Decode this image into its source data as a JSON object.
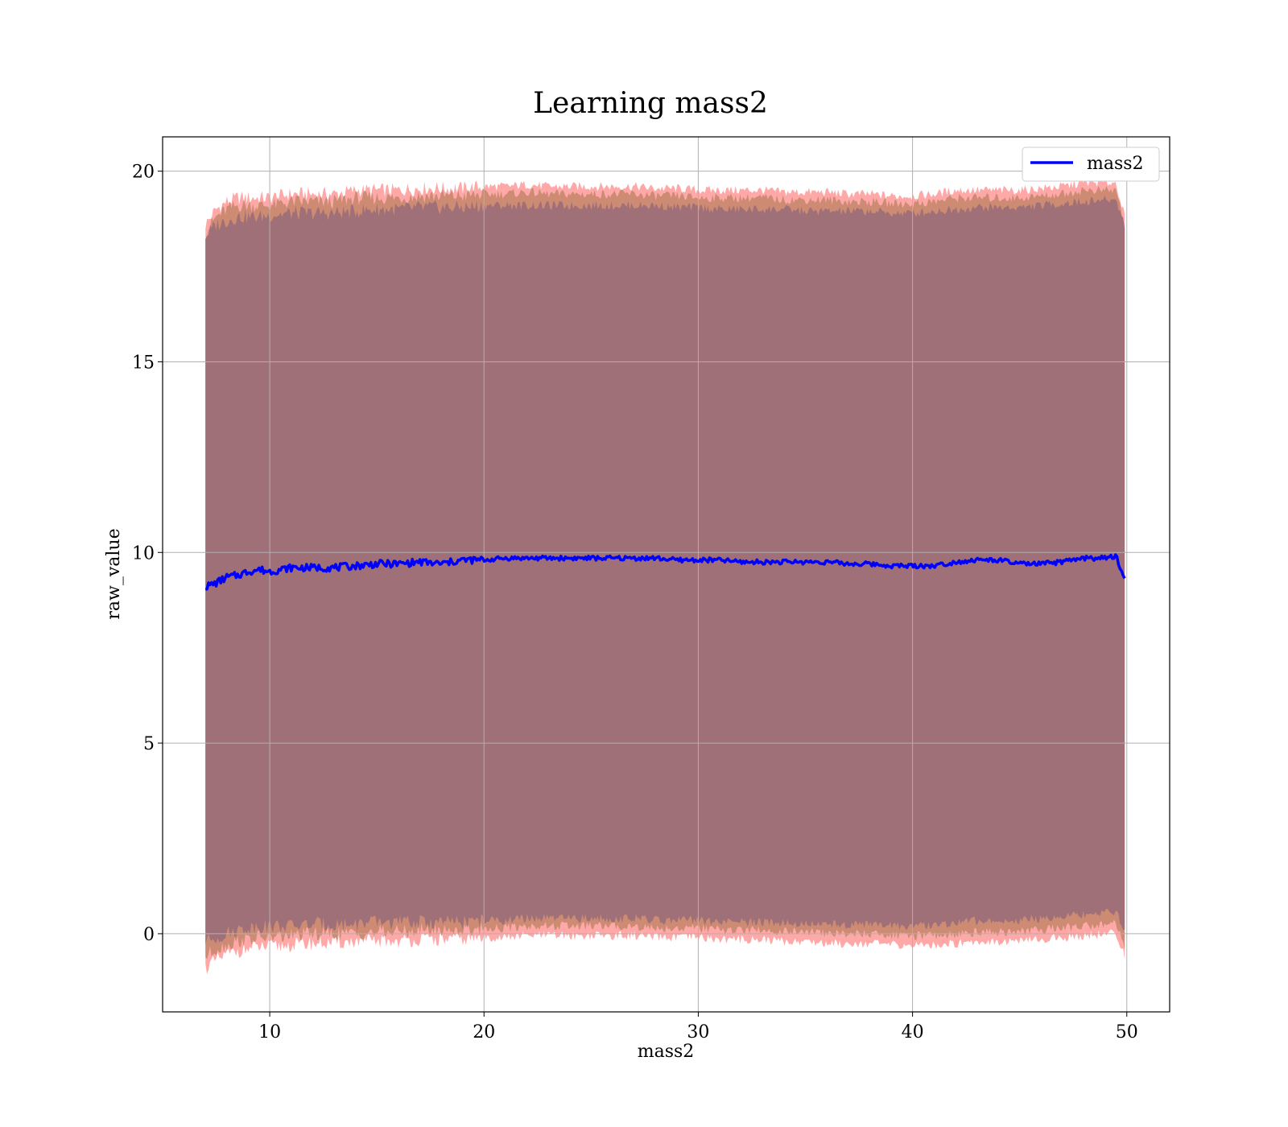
{
  "chart_data": {
    "type": "area",
    "title": "Learning mass2",
    "xlabel": "mass2",
    "ylabel": "raw_value",
    "xlim": [
      5.0,
      52.0
    ],
    "ylim": [
      -2.05,
      20.9
    ],
    "xticks": [
      10,
      20,
      30,
      40,
      50
    ],
    "yticks": [
      0,
      5,
      10,
      15,
      20
    ],
    "grid": true,
    "legend": {
      "position": "upper right",
      "entries": [
        "mass2"
      ]
    },
    "colors": {
      "line": "#0000ff",
      "band_outer": "#ff9999",
      "band_middle": "#c8876d",
      "band_inner": "#a07078",
      "grid": "#b0b0b0"
    },
    "series": [
      {
        "name": "mass2",
        "x": [
          7.0,
          7.5,
          8.0,
          8.5,
          9.0,
          9.5,
          10.0,
          11.0,
          12.0,
          13.0,
          14.0,
          15.0,
          16.0,
          17.0,
          18.0,
          19.0,
          20.0,
          21.0,
          22.0,
          23.0,
          24.0,
          25.0,
          26.0,
          27.0,
          28.0,
          29.0,
          30.0,
          31.0,
          32.0,
          33.0,
          34.0,
          35.0,
          36.0,
          37.0,
          38.0,
          39.0,
          40.0,
          41.0,
          42.0,
          43.0,
          44.0,
          45.0,
          46.0,
          47.0,
          48.0,
          49.0,
          49.5,
          49.9
        ],
        "y": [
          9.1,
          9.2,
          9.35,
          9.4,
          9.5,
          9.55,
          9.5,
          9.6,
          9.6,
          9.6,
          9.65,
          9.7,
          9.7,
          9.75,
          9.7,
          9.8,
          9.8,
          9.85,
          9.85,
          9.85,
          9.85,
          9.85,
          9.85,
          9.85,
          9.85,
          9.8,
          9.8,
          9.8,
          9.75,
          9.75,
          9.75,
          9.75,
          9.75,
          9.7,
          9.7,
          9.65,
          9.65,
          9.65,
          9.75,
          9.8,
          9.8,
          9.7,
          9.7,
          9.75,
          9.85,
          9.85,
          9.9,
          9.3
        ],
        "outer_upper": [
          18.6,
          19.0,
          19.2,
          19.3,
          19.3,
          19.3,
          19.3,
          19.4,
          19.4,
          19.4,
          19.5,
          19.5,
          19.5,
          19.55,
          19.55,
          19.55,
          19.6,
          19.6,
          19.65,
          19.6,
          19.6,
          19.6,
          19.6,
          19.6,
          19.55,
          19.55,
          19.5,
          19.5,
          19.5,
          19.5,
          19.45,
          19.45,
          19.45,
          19.4,
          19.4,
          19.35,
          19.35,
          19.4,
          19.5,
          19.5,
          19.5,
          19.5,
          19.55,
          19.6,
          19.7,
          19.7,
          19.7,
          18.8
        ],
        "middle_upper": [
          18.4,
          18.8,
          19.0,
          19.1,
          19.1,
          19.1,
          19.1,
          19.2,
          19.2,
          19.2,
          19.3,
          19.3,
          19.3,
          19.35,
          19.35,
          19.35,
          19.4,
          19.4,
          19.45,
          19.4,
          19.4,
          19.4,
          19.4,
          19.4,
          19.35,
          19.35,
          19.3,
          19.3,
          19.3,
          19.3,
          19.25,
          19.25,
          19.25,
          19.2,
          19.2,
          19.15,
          19.15,
          19.2,
          19.3,
          19.3,
          19.3,
          19.3,
          19.35,
          19.4,
          19.5,
          19.5,
          19.5,
          18.6
        ],
        "inner_upper": [
          18.3,
          18.6,
          18.7,
          18.8,
          18.8,
          18.8,
          18.85,
          18.9,
          18.9,
          18.9,
          18.95,
          19.0,
          19.0,
          19.05,
          19.05,
          19.05,
          19.1,
          19.1,
          19.1,
          19.1,
          19.1,
          19.1,
          19.1,
          19.1,
          19.1,
          19.05,
          19.05,
          19.0,
          19.0,
          19.0,
          19.0,
          18.95,
          18.95,
          18.95,
          18.95,
          18.9,
          18.9,
          18.95,
          19.0,
          19.05,
          19.05,
          19.05,
          19.1,
          19.15,
          19.2,
          19.25,
          19.25,
          18.6
        ],
        "inner_lower": [
          -0.2,
          -0.1,
          0.0,
          0.1,
          0.15,
          0.2,
          0.2,
          0.2,
          0.25,
          0.25,
          0.25,
          0.3,
          0.3,
          0.3,
          0.3,
          0.3,
          0.35,
          0.35,
          0.4,
          0.4,
          0.4,
          0.4,
          0.4,
          0.4,
          0.35,
          0.35,
          0.35,
          0.3,
          0.3,
          0.3,
          0.3,
          0.25,
          0.25,
          0.25,
          0.25,
          0.2,
          0.2,
          0.2,
          0.3,
          0.35,
          0.35,
          0.35,
          0.4,
          0.45,
          0.5,
          0.55,
          0.55,
          0.1
        ],
        "middle_lower": [
          -0.6,
          -0.4,
          -0.3,
          -0.2,
          -0.15,
          -0.1,
          -0.1,
          -0.05,
          0.0,
          0.0,
          0.0,
          0.05,
          0.05,
          0.1,
          0.1,
          0.1,
          0.15,
          0.15,
          0.2,
          0.2,
          0.2,
          0.2,
          0.2,
          0.2,
          0.15,
          0.15,
          0.15,
          0.1,
          0.1,
          0.1,
          0.05,
          0.05,
          0.0,
          0.0,
          0.0,
          -0.05,
          -0.05,
          -0.05,
          0.0,
          0.05,
          0.05,
          0.05,
          0.1,
          0.15,
          0.2,
          0.25,
          0.25,
          -0.3
        ],
        "outer_lower": [
          -0.9,
          -0.7,
          -0.55,
          -0.45,
          -0.4,
          -0.35,
          -0.35,
          -0.3,
          -0.25,
          -0.25,
          -0.2,
          -0.2,
          -0.2,
          -0.15,
          -0.15,
          -0.15,
          -0.1,
          -0.1,
          -0.05,
          -0.05,
          -0.05,
          -0.05,
          -0.05,
          -0.05,
          -0.1,
          -0.1,
          -0.1,
          -0.15,
          -0.15,
          -0.15,
          -0.2,
          -0.2,
          -0.25,
          -0.25,
          -0.25,
          -0.3,
          -0.3,
          -0.3,
          -0.25,
          -0.2,
          -0.2,
          -0.2,
          -0.15,
          -0.1,
          -0.05,
          0.0,
          0.0,
          -0.6
        ]
      }
    ]
  }
}
